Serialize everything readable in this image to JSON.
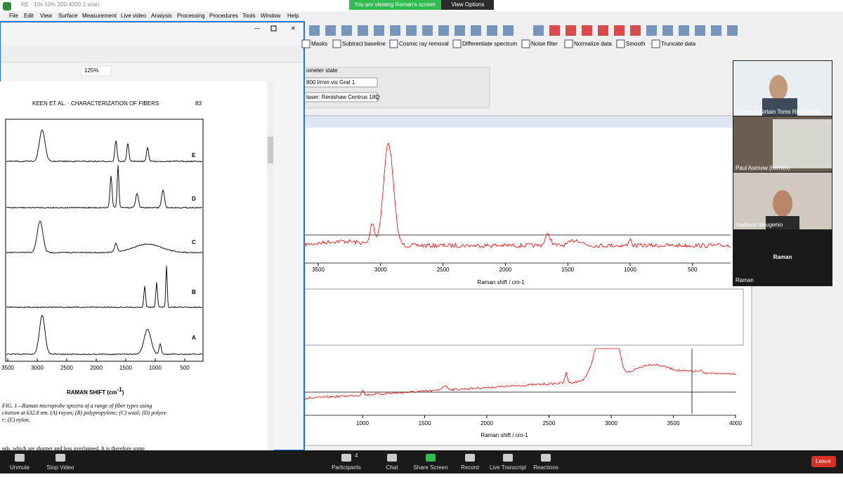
{
  "title_bar": {
    "window_title": "RE - 10s 10% 200-4000 1 scan",
    "banner": "You are viewing Raman's screen",
    "view_options": "View Options"
  },
  "menu": [
    "File",
    "Edit",
    "View",
    "Surface",
    "Measurement",
    "Live video",
    "Analysis",
    "Processing",
    "Procedures",
    "Tools",
    "Window",
    "Help"
  ],
  "pdf_viewer": {
    "zoom": "125%",
    "page": {
      "header": "KEEN ET AL. · CHARACTERIZATION OF FIBERS",
      "page_number": "83",
      "trace_labels": [
        "E",
        "D",
        "C",
        "B",
        "A"
      ],
      "x_ticks": [
        "3500",
        "3000",
        "2500",
        "2000",
        "1500",
        "1000",
        "500"
      ],
      "x_label": "RAMAN SHIFT (cm",
      "x_label_sup": "-1",
      "x_label_end": ")",
      "caption": [
        "FIG. 1—Raman microprobe spectra of a range of fiber types using",
        "citation at 632.8 nm. (A) rayon; (B) polypropylene; (C) wool; (D) polyes-",
        "r; (E) nylon."
      ],
      "body_text": "nds, which are sharper and less overlapped. It is therefore some"
    }
  },
  "toolbar_buttons": [
    "Masks",
    "Subtract baseline",
    "Cosmic ray removal",
    "Differentiate spectrum",
    "Noise filter",
    "Normalize data",
    "Smooth",
    "Truncate data"
  ],
  "instrument": {
    "heading": "ometer state",
    "grating": "800 l/mm vis Grat 1",
    "laser": "laser: Renishaw Centrus 18Q"
  },
  "spectrum_1": {
    "x_ticks": [
      "3500",
      "3000",
      "2500",
      "2000",
      "1500",
      "1000",
      "500"
    ],
    "x_label": "Raman shift / cm-1"
  },
  "spectrum_2": {
    "x_ticks": [
      "1000",
      "1500",
      "2000",
      "2500",
      "3000",
      "3500",
      "4000"
    ],
    "x_label": "Raman shift / cm-1"
  },
  "participants": [
    "Christine Girtain Toms River Regi...",
    "Paul Asimow (he/him)",
    "madison dieugenio",
    "Raman"
  ],
  "meeting_controls": {
    "unmute": "Unmute",
    "stop_video": "Stop Video",
    "participants": "Participants",
    "participant_count": "4",
    "chat": "Chat",
    "share_screen": "Share Screen",
    "record": "Record",
    "live_transcript": "Live Transcript",
    "reactions": "Reactions",
    "leave": "Leave"
  }
}
